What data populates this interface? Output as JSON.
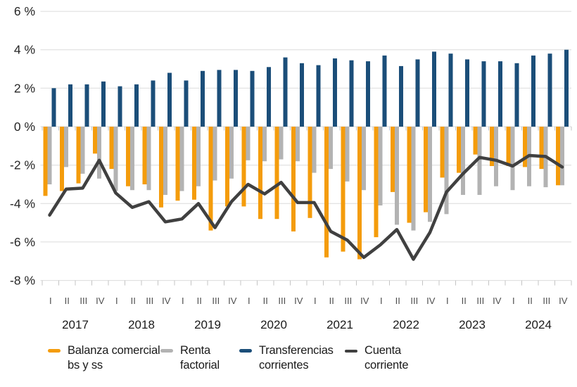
{
  "chart_data": {
    "type": "bar+line",
    "unit": "%",
    "ylim": [
      -8,
      6
    ],
    "y_tick_step": 2,
    "grid": true,
    "legend_position": "bottom",
    "y_axis_labels": [
      "6 %",
      "4 %",
      "2 %",
      "0 %",
      "-2 %",
      "-4 %",
      "-6 %",
      "-8 %"
    ],
    "y_axis_values": [
      6,
      4,
      2,
      0,
      -2,
      -4,
      -6,
      -8
    ],
    "quarter_labels": [
      "I",
      "II",
      "III",
      "IV"
    ],
    "years": [
      "2017",
      "2018",
      "2019",
      "2020",
      "2021",
      "2022",
      "2023",
      "2024"
    ],
    "series": [
      {
        "name": "Balanza comercial bs y ss",
        "type": "bar",
        "color": "#F49C0C",
        "values": [
          -3.6,
          -3.35,
          -2.95,
          -1.4,
          -2.2,
          -3.1,
          -3.0,
          -4.2,
          -3.85,
          -3.8,
          -5.4,
          -4.15,
          -4.15,
          -4.8,
          -4.8,
          -5.45,
          -4.75,
          -6.8,
          -6.5,
          -6.9,
          -5.75,
          -3.4,
          -5.0,
          -4.45,
          -2.65,
          -2.4,
          -1.45,
          -2.05,
          -2.05,
          -2.1,
          -2.2,
          -3.05
        ]
      },
      {
        "name": "Renta factorial",
        "type": "bar",
        "color": "#B3B3B3",
        "values": [
          -3.0,
          -2.1,
          -2.45,
          -2.7,
          -3.35,
          -3.3,
          -3.3,
          -3.55,
          -3.35,
          -3.1,
          -2.8,
          -2.7,
          -1.75,
          -1.8,
          -1.7,
          -1.8,
          -2.4,
          -2.2,
          -2.85,
          -3.3,
          -4.1,
          -5.1,
          -5.4,
          -4.95,
          -4.55,
          -3.55,
          -3.55,
          -3.1,
          -3.3,
          -3.1,
          -3.15,
          -3.05
        ]
      },
      {
        "name": "Transferencias corrientes",
        "type": "bar",
        "color": "#1B4E79",
        "values": [
          2.0,
          2.2,
          2.2,
          2.35,
          2.1,
          2.2,
          2.4,
          2.8,
          2.4,
          2.9,
          2.95,
          2.95,
          2.9,
          3.1,
          3.6,
          3.3,
          3.2,
          3.55,
          3.45,
          3.4,
          3.7,
          3.15,
          3.5,
          3.9,
          3.8,
          3.5,
          3.4,
          3.4,
          3.3,
          3.7,
          3.8,
          4.0
        ]
      },
      {
        "name": "Cuenta corriente",
        "type": "line",
        "color": "#404040",
        "values": [
          -4.6,
          -3.25,
          -3.2,
          -1.75,
          -3.45,
          -4.2,
          -3.9,
          -4.95,
          -4.8,
          -4.0,
          -5.25,
          -3.9,
          -3.0,
          -3.5,
          -2.9,
          -3.95,
          -3.95,
          -5.45,
          -5.9,
          -6.8,
          -6.15,
          -5.35,
          -6.9,
          -5.5,
          -3.4,
          -2.45,
          -1.6,
          -1.75,
          -2.05,
          -1.5,
          -1.55,
          -2.1
        ]
      }
    ],
    "style": {
      "gridline_color": "#DBDBDB",
      "tick_color": "#C4C4C4",
      "axis_label_color": "#262626",
      "quarter_label_color": "#4d4d4d",
      "year_label_color": "#1a1a1a"
    }
  }
}
